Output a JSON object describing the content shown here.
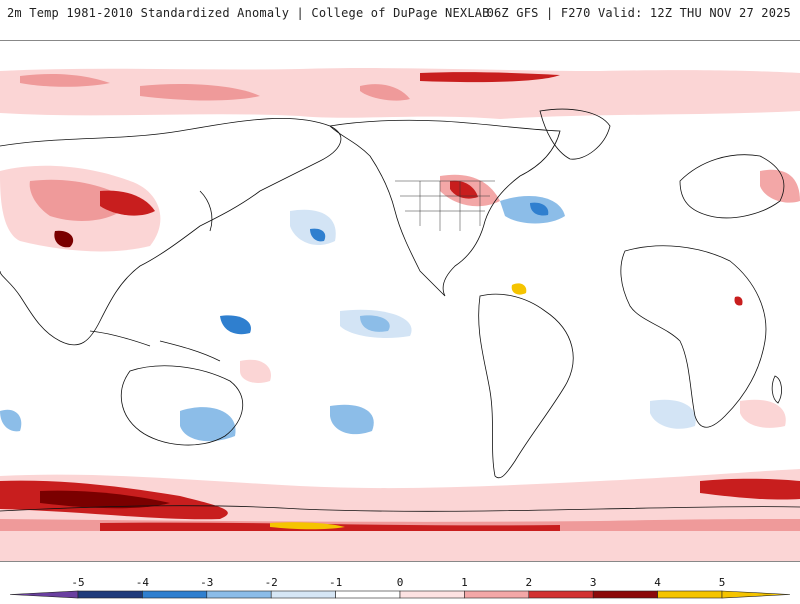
{
  "header": {
    "title_left": "2m Temp 1981-2010 Standardized Anomaly | College of DuPage NEXLAB",
    "title_right": "06Z GFS | F270 Valid: 12Z THU NOV 27 2025"
  },
  "colorbar": {
    "labels": [
      "-5",
      "-4",
      "-3",
      "-2",
      "-1",
      "0",
      "1",
      "2",
      "3",
      "4",
      "5"
    ],
    "segments": [
      {
        "color": "#6a3fa0"
      },
      {
        "color": "#1f3a7a"
      },
      {
        "color": "#2f7fcf"
      },
      {
        "color": "#8bbce8"
      },
      {
        "color": "#d6e6f5"
      },
      {
        "color": "#ffffff"
      },
      {
        "color": "#fde2e2"
      },
      {
        "color": "#f3a7a7"
      },
      {
        "color": "#d23232"
      },
      {
        "color": "#8b0a0a"
      },
      {
        "color": "#f5c400"
      }
    ]
  },
  "colors": {
    "land_outline": "#111111",
    "warm_light": "#fbd5d5",
    "warm_mid": "#ef9a9a",
    "warm_strong": "#c81e1e",
    "warm_extreme": "#7a0000",
    "cold_light": "#d3e4f5",
    "cold_mid": "#8cbde8",
    "yellow": "#f5c400"
  }
}
